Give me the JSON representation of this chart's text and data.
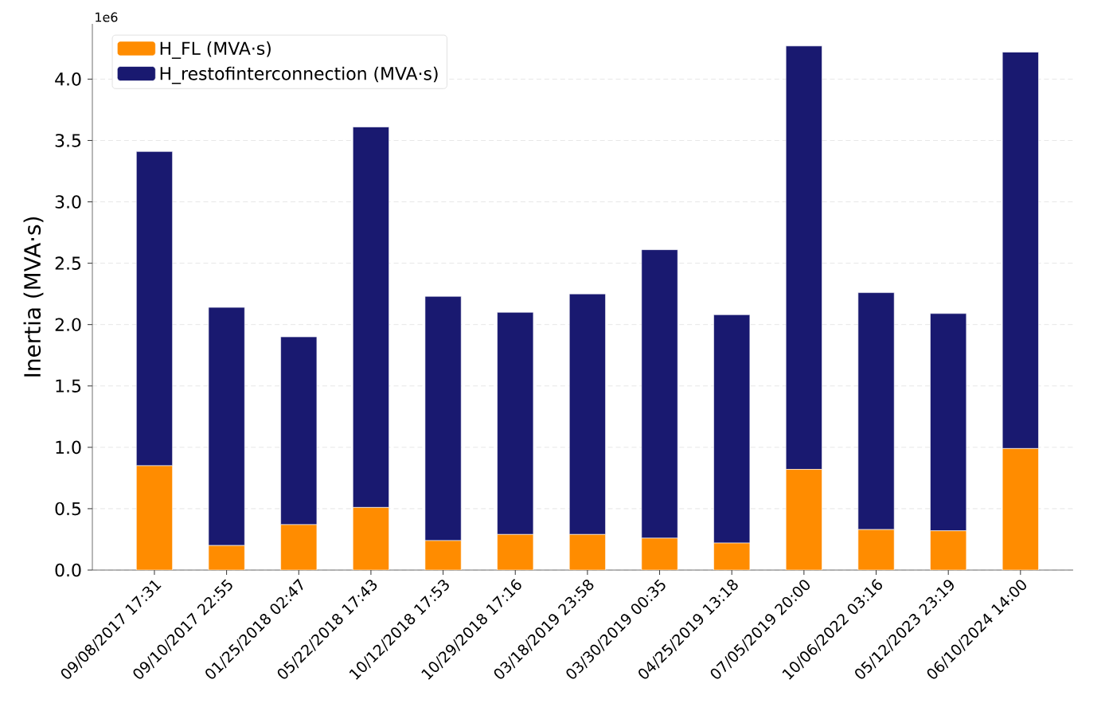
{
  "chart_data": {
    "type": "bar",
    "stacked": true,
    "ylabel": "Inertia (MVA·s)",
    "categories": [
      "09/08/2017 17:31",
      "09/10/2017 22:55",
      "01/25/2018 02:47",
      "05/22/2018 17:43",
      "10/12/2018 17:53",
      "10/29/2018 17:16",
      "03/18/2019 23:58",
      "03/30/2019 00:35",
      "04/25/2019 13:18",
      "07/05/2019 20:00",
      "10/06/2022 03:16",
      "05/12/2023 23:19",
      "06/10/2024 14:00"
    ],
    "series": [
      {
        "name": "H_FL (MVA·s)",
        "color": "#ff8c00",
        "values": [
          0.85,
          0.2,
          0.37,
          0.51,
          0.24,
          0.29,
          0.29,
          0.26,
          0.22,
          0.82,
          0.33,
          0.32,
          0.99
        ]
      },
      {
        "name": "H_restofinterconnection (MVA·s)",
        "color": "#191970",
        "values": [
          2.56,
          1.94,
          1.53,
          3.1,
          1.99,
          1.81,
          1.96,
          2.35,
          1.86,
          3.45,
          1.93,
          1.77,
          3.23
        ]
      }
    ],
    "ylim": [
      0,
      4.45
    ],
    "yticks": [
      {
        "value": 0,
        "label": "0.0"
      },
      {
        "value": 0.5,
        "label": "0.5"
      },
      {
        "value": 1,
        "label": "1.0"
      },
      {
        "value": 1.5,
        "label": "1.5"
      },
      {
        "value": 2,
        "label": "2.0"
      },
      {
        "value": 2.5,
        "label": "2.5"
      },
      {
        "value": 3,
        "label": "3.0"
      },
      {
        "value": 3.5,
        "label": "3.5"
      },
      {
        "value": 4,
        "label": "4.0"
      }
    ],
    "annotations": [
      "1e6"
    ],
    "grid": "y",
    "legend": "top left"
  }
}
